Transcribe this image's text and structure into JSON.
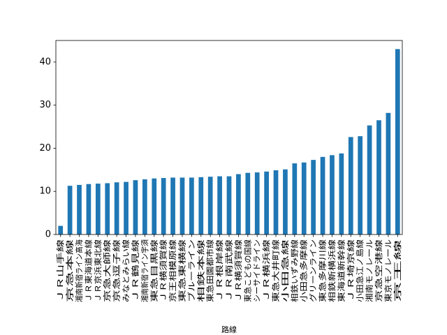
{
  "chart_data": {
    "type": "bar",
    "title": "",
    "xlabel": "路線",
    "ylabel": "",
    "ylim": [
      0,
      45
    ],
    "yticks": [
      0,
      10,
      20,
      30,
      40
    ],
    "grid": false,
    "color": "#1f77b4",
    "categories": [
      "ＪＲ山手線",
      "京急本線",
      "湘南新宿ライン高海",
      "ＪＲ東海道本線",
      "ＪＲ京浜東北線",
      "京急大師線",
      "京急逗子線",
      "みなとみらい線",
      "ＪＲ鶴見線",
      "湘南新宿ライン宇須",
      "東急目黒線",
      "ＪＲ横須賀線",
      "京王相模原線",
      "東急東横線",
      "ブルーライン",
      "相鉄本線",
      "東急田園都市線",
      "ＪＲ根岸線",
      "ＪＲ南武線",
      "ＪＲ横須賀線",
      "東急こどもの国線",
      "シーサイドライン",
      "ＪＲ横浜線",
      "東急大井町線",
      "小田急線",
      "相鉄いずみ野線",
      "小田急多摩線",
      "グリーンライン",
      "東急多摩川線",
      "相鉄新横浜線",
      "東海道新幹線",
      "ＪＲ埼京線",
      "小田急江ノ島線",
      "湘南モノレール",
      "京急空港線",
      "東京モノレール",
      "京王線"
    ],
    "values": [
      2.0,
      11.3,
      11.5,
      11.7,
      11.8,
      11.9,
      12.1,
      12.2,
      12.6,
      12.8,
      13.0,
      13.1,
      13.2,
      13.2,
      13.2,
      13.3,
      13.4,
      13.5,
      13.5,
      14.0,
      14.3,
      14.4,
      14.6,
      14.9,
      15.1,
      16.5,
      16.7,
      17.3,
      18.0,
      18.4,
      18.8,
      22.6,
      22.8,
      25.3,
      26.5,
      28.2,
      43.0
    ]
  }
}
